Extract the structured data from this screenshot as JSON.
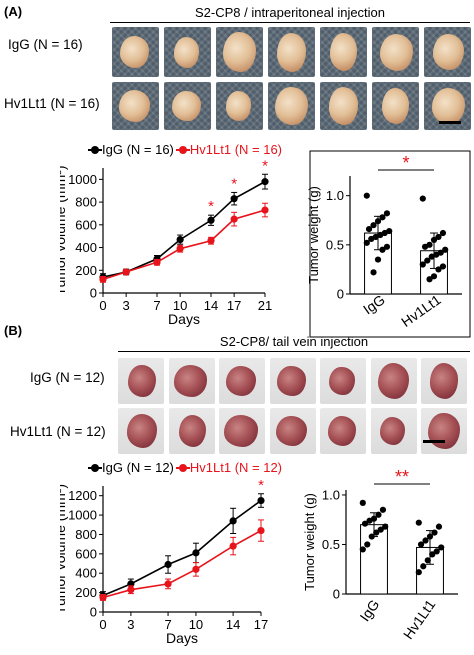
{
  "panelA": {
    "label": "(A)",
    "title": "S2-CP8 / intraperitoneal injection",
    "row1_label": "IgG (N = 16)",
    "row2_label": "Hv1Lt1 (N = 16)"
  },
  "panelB": {
    "label": "(B)",
    "title": "S2-CP8/ tail vein injection",
    "row1_label": "IgG (N = 12)",
    "row2_label": "Hv1Lt1 (N = 12)"
  },
  "colors": {
    "igg": "#000000",
    "hv1": "#e8141b"
  },
  "chart_data": [
    {
      "id": "A-volume",
      "type": "line",
      "xlabel": "Days",
      "ylabel": "Tumor volume (mm³)",
      "x": [
        0,
        3,
        7,
        10,
        14,
        17,
        21
      ],
      "xlim": [
        0,
        21
      ],
      "ylim": [
        0,
        1100
      ],
      "yticks": [
        0,
        200,
        400,
        600,
        800,
        1000
      ],
      "series": [
        {
          "name": "IgG (N = 16)",
          "color": "#000000",
          "values": [
            140,
            185,
            300,
            470,
            640,
            830,
            980
          ],
          "err": [
            30,
            25,
            30,
            40,
            45,
            55,
            65
          ]
        },
        {
          "name": "Hv1Lt1 (N = 16)",
          "color": "#e8141b",
          "values": [
            120,
            185,
            270,
            390,
            460,
            650,
            730
          ],
          "err": [
            25,
            20,
            25,
            30,
            30,
            60,
            60
          ]
        }
      ],
      "significance": [
        {
          "x": 14,
          "label": "*"
        },
        {
          "x": 17,
          "label": "*"
        },
        {
          "x": 21,
          "label": "*"
        }
      ]
    },
    {
      "id": "A-weight",
      "type": "bar",
      "ylabel": "Tumor weight (g)",
      "categories": [
        "IgG",
        "Hv1Lt1"
      ],
      "values": [
        0.62,
        0.44
      ],
      "err": [
        0.17,
        0.18
      ],
      "ylim": [
        0,
        1.2
      ],
      "yticks": [
        0,
        0.5,
        1.0
      ],
      "yticklabels": [
        "0",
        "0.5",
        "1.0"
      ],
      "points": [
        [
          1.0,
          0.82,
          0.78,
          0.74,
          0.7,
          0.66,
          0.64,
          0.62,
          0.6,
          0.58,
          0.56,
          0.52,
          0.48,
          0.45,
          0.35,
          0.22
        ],
        [
          0.97,
          0.62,
          0.58,
          0.55,
          0.5,
          0.48,
          0.45,
          0.42,
          0.4,
          0.38,
          0.34,
          0.3,
          0.28,
          0.25,
          0.18,
          0.15
        ]
      ],
      "significance": [
        {
          "label": "*"
        }
      ]
    },
    {
      "id": "B-volume",
      "type": "line",
      "xlabel": "Days",
      "ylabel": "Tumor volume (mm³)",
      "x": [
        0,
        3,
        7,
        10,
        14,
        17
      ],
      "xlim": [
        0,
        17
      ],
      "ylim": [
        0,
        1300
      ],
      "yticks": [
        0,
        200,
        400,
        600,
        800,
        1000,
        1200
      ],
      "series": [
        {
          "name": "IgG (N = 12)",
          "color": "#000000",
          "values": [
            170,
            290,
            490,
            610,
            940,
            1150
          ],
          "err": [
            40,
            50,
            90,
            100,
            130,
            70
          ]
        },
        {
          "name": "Hv1Lt1 (N = 12)",
          "color": "#e8141b",
          "values": [
            150,
            230,
            290,
            440,
            680,
            840
          ],
          "err": [
            30,
            40,
            50,
            70,
            90,
            110
          ]
        }
      ],
      "significance": [
        {
          "x": 17,
          "label": "*"
        }
      ]
    },
    {
      "id": "B-weight",
      "type": "bar",
      "ylabel": "Tumor weight (g)",
      "categories": [
        "IgG",
        "Hv1Lt1"
      ],
      "values": [
        0.7,
        0.47
      ],
      "err": [
        0.12,
        0.17
      ],
      "ylim": [
        0,
        1.05
      ],
      "yticks": [
        0,
        0.5,
        1.0
      ],
      "yticklabels": [
        "0",
        "0.5",
        "1.0"
      ],
      "points": [
        [
          0.92,
          0.85,
          0.8,
          0.76,
          0.74,
          0.71,
          0.68,
          0.65,
          0.62,
          0.58,
          0.5,
          0.45
        ],
        [
          0.72,
          0.68,
          0.62,
          0.58,
          0.54,
          0.5,
          0.47,
          0.43,
          0.4,
          0.34,
          0.28,
          0.22
        ]
      ],
      "significance": [
        {
          "label": "**"
        }
      ]
    }
  ]
}
